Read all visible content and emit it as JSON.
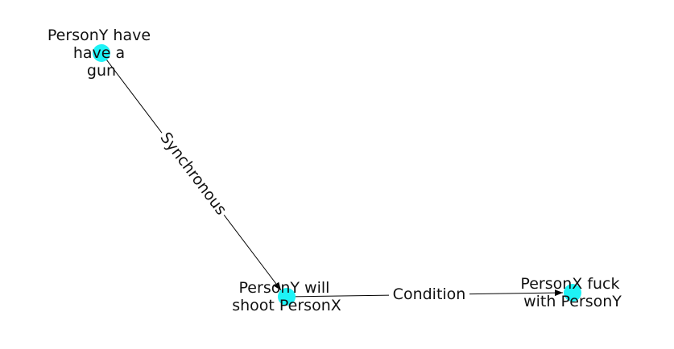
{
  "diagram": {
    "type": "directed-graph",
    "node_color": "#1EF3F6",
    "edge_color": "#000000",
    "label_color": "#111111",
    "nodes": [
      {
        "id": "n1",
        "lines": [
          "PersonY have",
          "have a",
          "gun"
        ]
      },
      {
        "id": "n2",
        "lines": [
          "PersonY will",
          "shoot PersonX"
        ]
      },
      {
        "id": "n3",
        "lines": [
          "PersonX fuck",
          "with PersonY"
        ]
      }
    ],
    "edges": [
      {
        "from": "n1",
        "to": "n2",
        "label": "Synchronous"
      },
      {
        "from": "n2",
        "to": "n3",
        "label": "Condition"
      }
    ]
  }
}
